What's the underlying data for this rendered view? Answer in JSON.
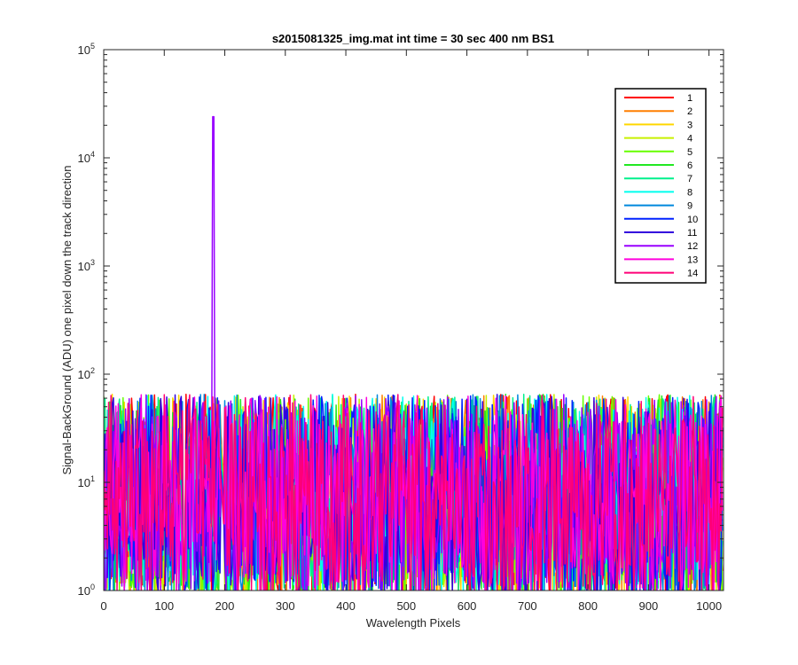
{
  "chart_data": {
    "type": "line",
    "title": "s2015081325_img.mat int time = 30 sec  400 nm BS1",
    "xlabel": "Wavelength Pixels",
    "ylabel": "Signal-BackGround (ADU) one pixel down the track direction",
    "x_range": [
      0,
      1024
    ],
    "xlim": [
      0,
      1024
    ],
    "ylim": [
      1,
      100000
    ],
    "y_scale": "log",
    "x_ticks": [
      0,
      100,
      200,
      300,
      400,
      500,
      600,
      700,
      800,
      900,
      1000
    ],
    "x_tick_labels": [
      "0",
      "100",
      "200",
      "300",
      "400",
      "500",
      "600",
      "700",
      "800",
      "900",
      "1000"
    ],
    "y_ticks": [
      1,
      10,
      100,
      1000,
      10000,
      100000
    ],
    "y_tick_labels": [
      {
        "base": "10",
        "exp": "0"
      },
      {
        "base": "10",
        "exp": "1"
      },
      {
        "base": "10",
        "exp": "2"
      },
      {
        "base": "10",
        "exp": "3"
      },
      {
        "base": "10",
        "exp": "4"
      },
      {
        "base": "10",
        "exp": "5"
      }
    ],
    "grid": false,
    "legend_position": "top-right",
    "typical_value_range": [
      1,
      60
    ],
    "peak": {
      "series": "12",
      "x": 181,
      "y": 24000
    },
    "series": [
      {
        "name": "1",
        "color": "#ff0000"
      },
      {
        "name": "2",
        "color": "#ff7f00"
      },
      {
        "name": "3",
        "color": "#ffd700"
      },
      {
        "name": "4",
        "color": "#c8f000"
      },
      {
        "name": "5",
        "color": "#66ff00"
      },
      {
        "name": "6",
        "color": "#22e822"
      },
      {
        "name": "7",
        "color": "#00f08c"
      },
      {
        "name": "8",
        "color": "#00ffee"
      },
      {
        "name": "9",
        "color": "#0088dd"
      },
      {
        "name": "10",
        "color": "#0022ff"
      },
      {
        "name": "11",
        "color": "#3300dd"
      },
      {
        "name": "12",
        "color": "#9900ff"
      },
      {
        "name": "13",
        "color": "#ff00dd"
      },
      {
        "name": "14",
        "color": "#ff0077"
      }
    ]
  }
}
